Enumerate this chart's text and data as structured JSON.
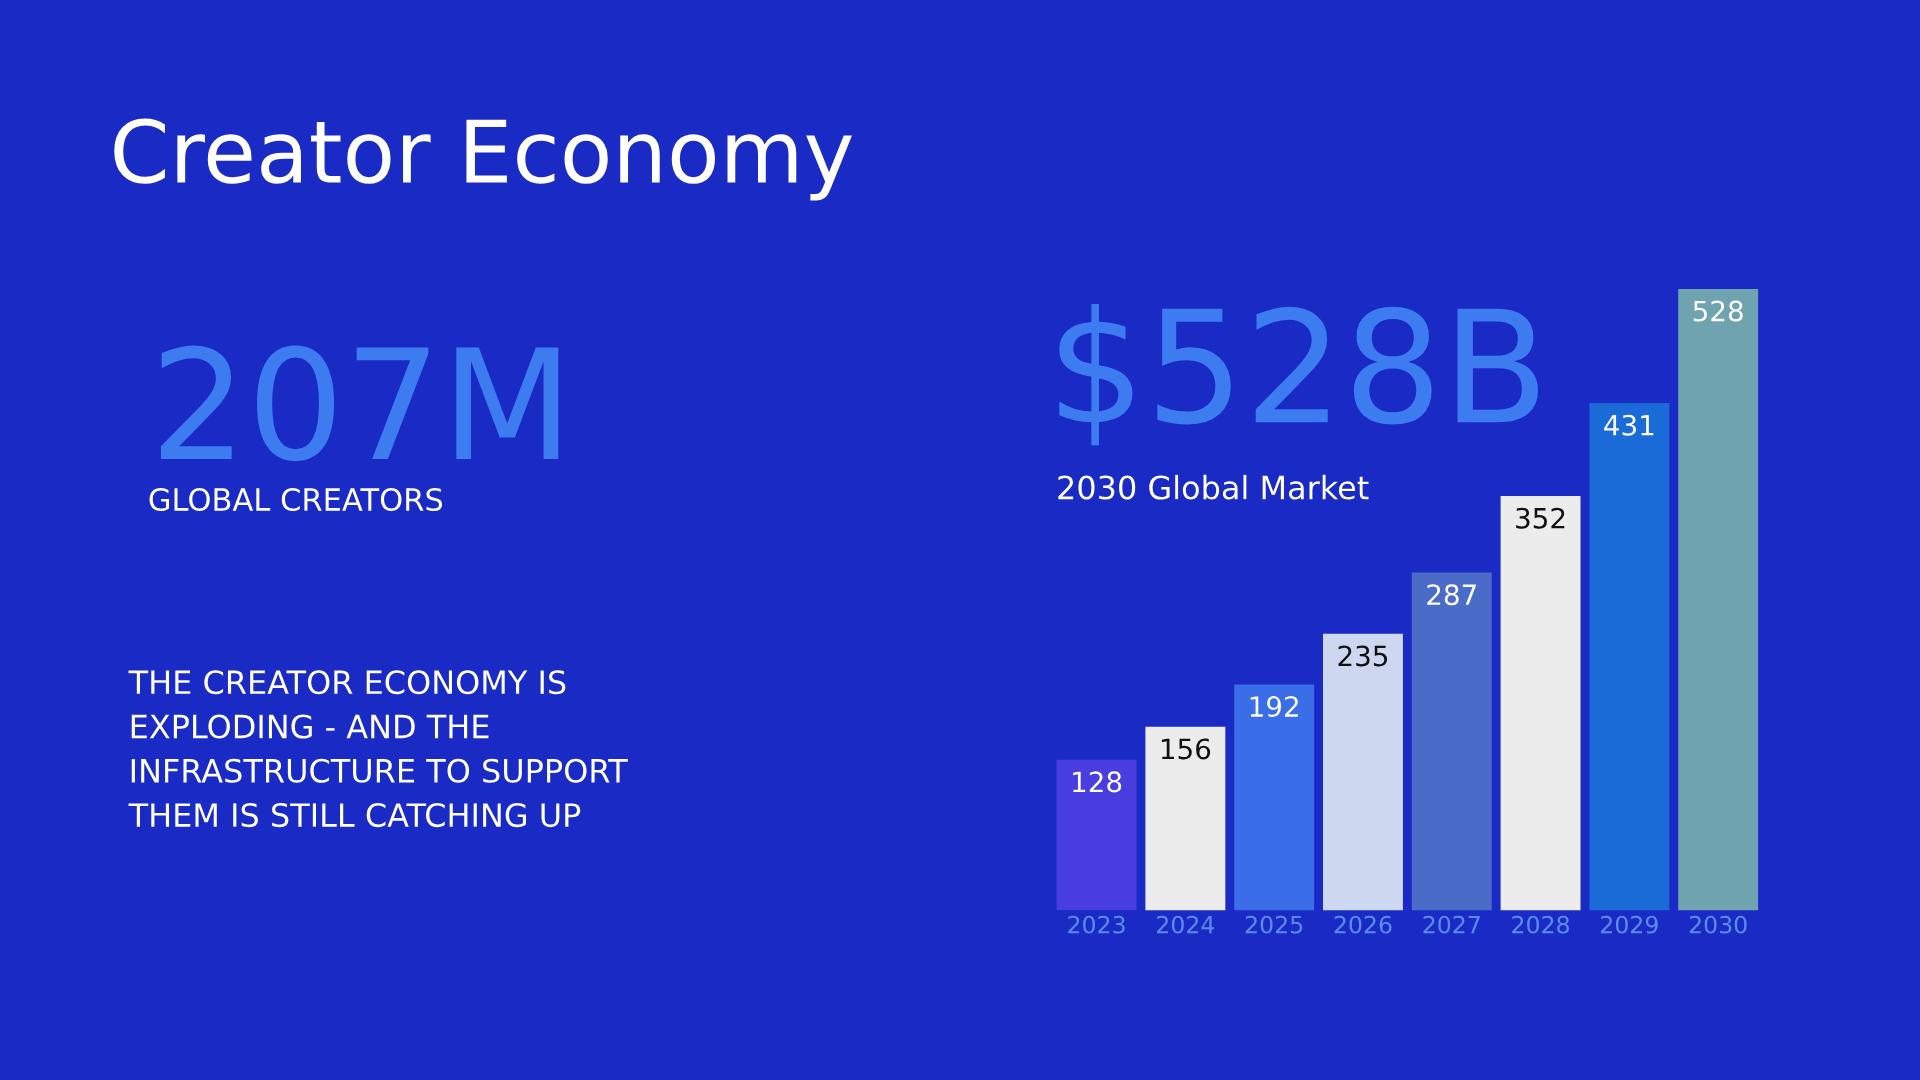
{
  "chart_data": {
    "type": "bar",
    "title": "Creator Economy",
    "annotations": [
      "207M",
      "GLOBAL CREATORS",
      "THE CREATOR ECONOMY IS\nEXPLODING - AND THE\nINFRASTRUCTURE TO SUPPORT\nTHEM IS STILL CATCHING UP",
      "$528B",
      "2030 Global Market"
    ],
    "categories": [
      "2023",
      "2024",
      "2025",
      "2026",
      "2027",
      "2028",
      "2029",
      "2030"
    ],
    "values": [
      128,
      156,
      192,
      235,
      287,
      352,
      431,
      528
    ],
    "colors": [
      "#4a3de0",
      "#ececec",
      "#3a6ee8",
      "#cdd8f0",
      "#4a6cc8",
      "#ececec",
      "#1a6ad8",
      "#6fa3b0"
    ],
    "data_labels": true
  }
}
